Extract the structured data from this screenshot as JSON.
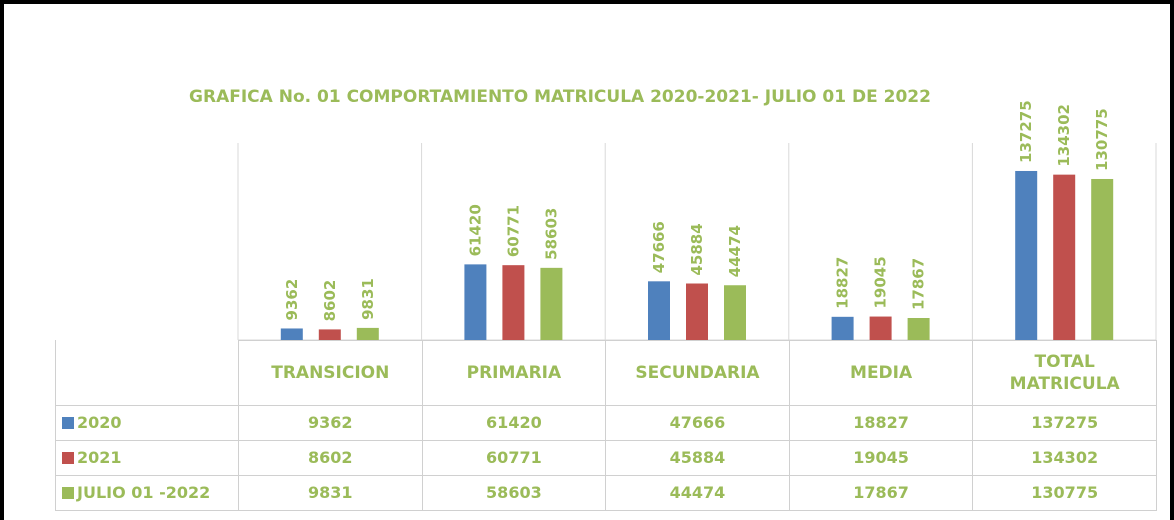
{
  "chart_data": {
    "type": "bar",
    "title": "GRAFICA No. 01 COMPORTAMIENTO MATRICULA 2020-2021- JULIO 01 DE 2022",
    "categories": [
      "TRANSICION",
      "PRIMARIA",
      "SECUNDARIA",
      "MEDIA",
      "TOTAL MATRICULA"
    ],
    "series": [
      {
        "name": "2020",
        "color": "#4f81bd",
        "values": [
          9362,
          61420,
          47666,
          18827,
          137275
        ]
      },
      {
        "name": "2021",
        "color": "#c0504d",
        "values": [
          8602,
          60771,
          45884,
          19045,
          134302
        ]
      },
      {
        "name": "JULIO 01 -2022",
        "color": "#9bbb59",
        "values": [
          9831,
          58603,
          44474,
          17867,
          130775
        ]
      }
    ],
    "ylim": [
      0,
      160000
    ],
    "label_color": "#9bbb59"
  }
}
